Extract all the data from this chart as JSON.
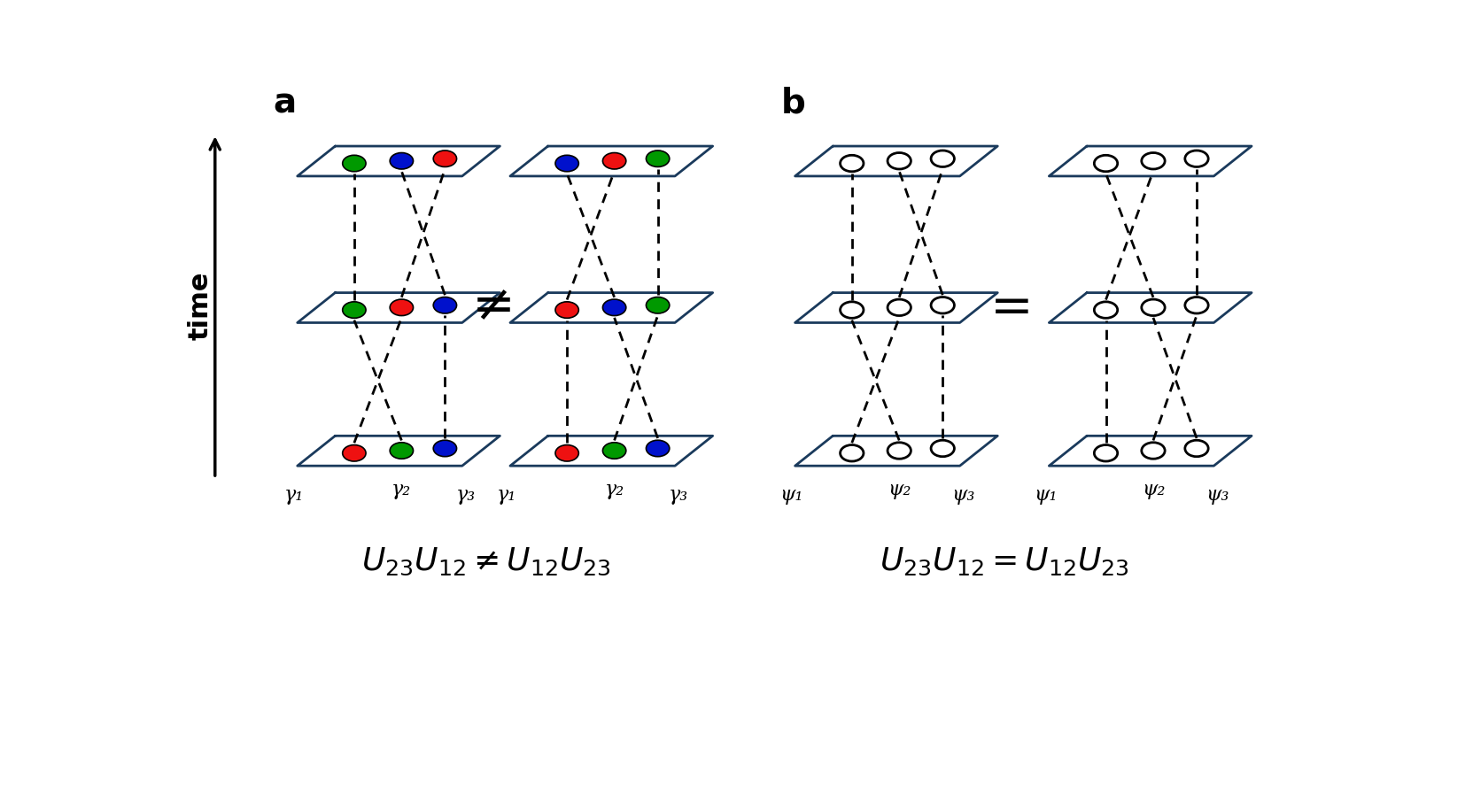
{
  "bg_color": "#ffffff",
  "panel_a_label": "a",
  "panel_b_label": "b",
  "time_label": "time",
  "neq_formula": "$U_{23}U_{12} \\neq U_{12}U_{23}$",
  "eq_formula": "$U_{23}U_{12} = U_{12}U_{23}$",
  "colors": {
    "red": "#ee1111",
    "green": "#009900",
    "blue": "#0011cc",
    "plane": "#1a3a5c"
  },
  "gamma_labels": [
    "γ₁",
    "γ₂",
    "γ₃"
  ],
  "psi_labels": [
    "ψ₁",
    "ψ₂",
    "ψ₃"
  ]
}
